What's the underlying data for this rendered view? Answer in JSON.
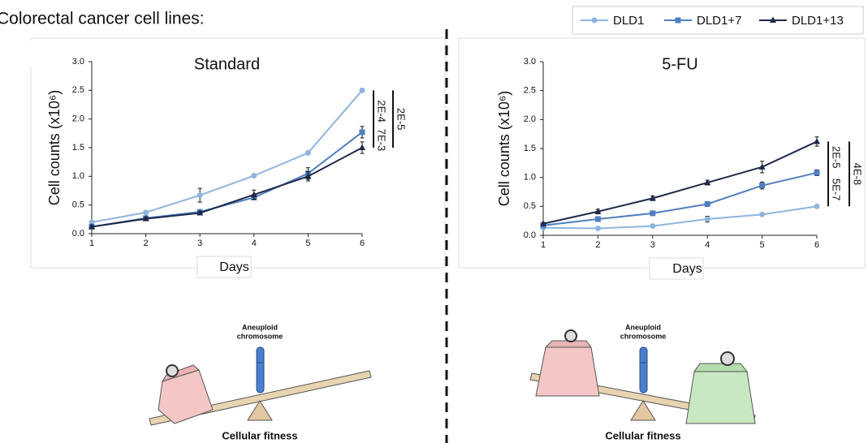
{
  "header": "Colorectal cancer cell lines:",
  "chart_data": [
    {
      "type": "line",
      "title": "Standard",
      "xlabel": "Days",
      "ylabel": "Cell counts (x10⁶)",
      "x": [
        1,
        2,
        3,
        4,
        5,
        6
      ],
      "xlim": [
        1,
        6
      ],
      "xticks": [
        1,
        2,
        3,
        4,
        5,
        6
      ],
      "ylim": [
        0,
        3
      ],
      "yticks": [
        {
          "value": 0,
          "label": "0.0"
        },
        {
          "value": 0.5,
          "label": "0.5"
        },
        {
          "value": 1,
          "label": "1.0"
        },
        {
          "value": 1.5,
          "label": "1.5"
        },
        {
          "value": 2,
          "label": "2.0"
        },
        {
          "value": 2.5,
          "label": "2.5"
        },
        {
          "value": 3,
          "label": "3.0"
        }
      ],
      "series": [
        {
          "name": "DLD1",
          "color": "#8fb4de",
          "marker": "circle",
          "values": [
            0.2,
            0.37,
            0.67,
            1.01,
            1.41,
            2.5
          ],
          "errors": [
            0.02,
            0.02,
            0.12,
            0.02,
            0.02,
            0.03
          ]
        },
        {
          "name": "DLD1+7",
          "color": "#4f7fbf",
          "marker": "square",
          "values": [
            0.12,
            0.27,
            0.38,
            0.63,
            1.05,
            1.77
          ],
          "errors": [
            0.02,
            0.02,
            0.03,
            0.03,
            0.1,
            0.1
          ]
        },
        {
          "name": "DLD1+13",
          "color": "#1f2a4a",
          "marker": "triangle",
          "values": [
            0.12,
            0.26,
            0.36,
            0.68,
            1.0,
            1.5
          ],
          "errors": [
            0.02,
            0.03,
            0.03,
            0.08,
            0.08,
            0.1
          ]
        }
      ],
      "annotations": [
        "2E-4",
        "7E-3",
        "2E-5"
      ]
    },
    {
      "type": "line",
      "title": "5-FU",
      "xlabel": "Days",
      "ylabel": "Cell counts (x10⁶)",
      "x": [
        1,
        2,
        3,
        4,
        5,
        6
      ],
      "xlim": [
        1,
        6
      ],
      "xticks": [
        1,
        2,
        3,
        4,
        5,
        6
      ],
      "ylim": [
        0,
        3
      ],
      "yticks": [
        {
          "value": 0,
          "label": "0.0"
        },
        {
          "value": 0.5,
          "label": "0.5"
        },
        {
          "value": 1,
          "label": "1.0"
        },
        {
          "value": 1.5,
          "label": "1.5"
        },
        {
          "value": 2,
          "label": "2.0"
        },
        {
          "value": 2.5,
          "label": "2.5"
        },
        {
          "value": 3,
          "label": "3.0"
        }
      ],
      "series": [
        {
          "color": "#8fb4de",
          "marker": "circle",
          "values": [
            0.13,
            0.12,
            0.16,
            0.28,
            0.36,
            0.5
          ],
          "errors": [
            0.02,
            0.02,
            0.02,
            0.05,
            0.02,
            0.03
          ]
        },
        {
          "color": "#4f7fbf",
          "marker": "square",
          "values": [
            0.17,
            0.28,
            0.38,
            0.54,
            0.86,
            1.08
          ],
          "errors": [
            0.02,
            0.02,
            0.02,
            0.03,
            0.06,
            0.05
          ]
        },
        {
          "color": "#1f2a4a",
          "marker": "triangle",
          "values": [
            0.2,
            0.41,
            0.64,
            0.91,
            1.18,
            1.62
          ],
          "errors": [
            0.02,
            0.04,
            0.04,
            0.04,
            0.1,
            0.08
          ]
        }
      ],
      "annotations": [
        "2E-5",
        "5E-7",
        "4E-8"
      ]
    }
  ],
  "diagrams": [
    {
      "label": [
        "Aneuploid",
        "chromosome"
      ],
      "caption": "Cellular fitness"
    },
    {
      "label": [
        "Aneuploid",
        "chromosome"
      ],
      "caption": "Cellular fitness"
    }
  ]
}
